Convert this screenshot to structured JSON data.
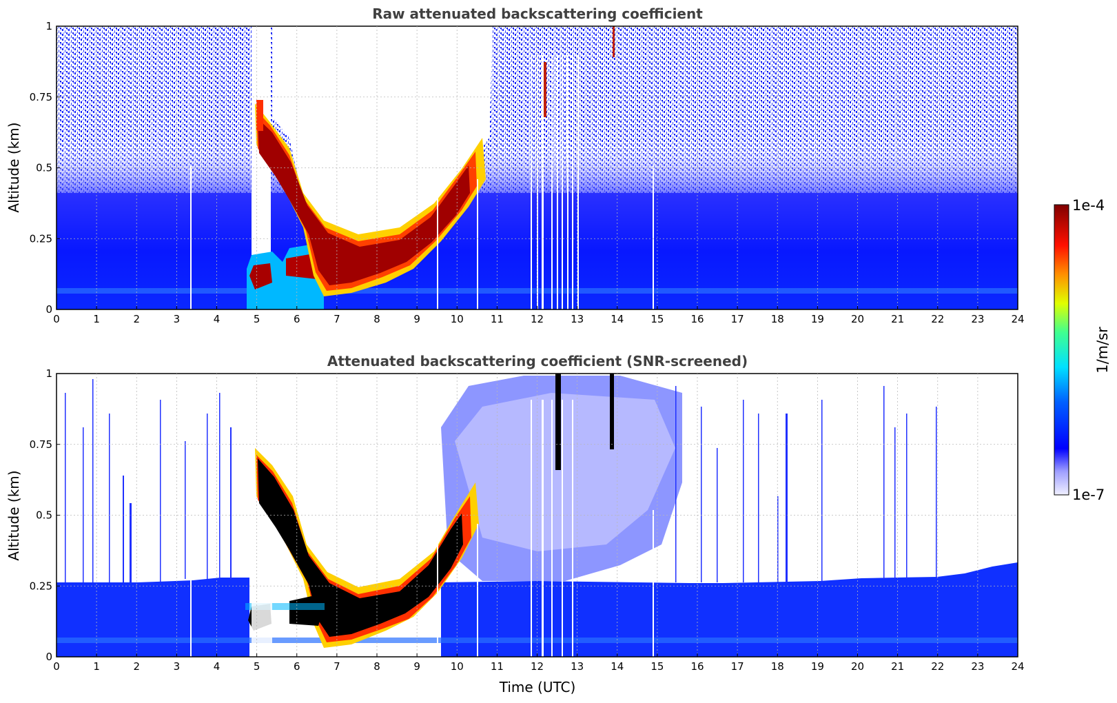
{
  "chart_data": [
    {
      "type": "heatmap",
      "title": "Raw attenuated backscattering coefficient",
      "xlabel": "",
      "ylabel": "Altitude (km)",
      "xlim": [
        0,
        24
      ],
      "ylim": [
        0,
        1
      ],
      "xticks": [
        "0",
        "1",
        "2",
        "3",
        "4",
        "5",
        "6",
        "7",
        "8",
        "9",
        "10",
        "11",
        "12",
        "13",
        "14",
        "15",
        "16",
        "17",
        "18",
        "19",
        "20",
        "21",
        "22",
        "23",
        "24"
      ],
      "yticks": [
        "0",
        "0.25",
        "0.5",
        "0.75",
        "1"
      ],
      "grid": true,
      "features": {
        "boundary_layer_top_km": 0.25,
        "noisy_region_top_km": 1.0,
        "clear_gap_hours": [
          4.95,
          5.1
        ],
        "aerosol_layer_bottom_km": [
          [
            5.1,
            0.62
          ],
          [
            5.5,
            0.55
          ],
          [
            6.0,
            0.4
          ],
          [
            6.5,
            0.28
          ],
          [
            7.0,
            0.23
          ],
          [
            7.5,
            0.21
          ],
          [
            8.0,
            0.22
          ],
          [
            8.5,
            0.26
          ],
          [
            9.0,
            0.31
          ],
          [
            9.5,
            0.38
          ],
          [
            10.0,
            0.46
          ],
          [
            10.5,
            0.57
          ]
        ],
        "low_layer_km": [
          0.05,
          0.18
        ],
        "low_layer_hours": [
          4.9,
          9.0
        ]
      }
    },
    {
      "type": "heatmap",
      "title": "Attenuated backscattering coefficient (SNR-screened)",
      "xlabel": "Time (UTC)",
      "ylabel": "Altitude (km)",
      "xlim": [
        0,
        24
      ],
      "ylim": [
        0,
        1
      ],
      "xticks": [
        "0",
        "1",
        "2",
        "3",
        "4",
        "5",
        "6",
        "7",
        "8",
        "9",
        "10",
        "11",
        "12",
        "13",
        "14",
        "15",
        "16",
        "17",
        "18",
        "19",
        "20",
        "21",
        "22",
        "23",
        "24"
      ],
      "yticks": [
        "0",
        "0.25",
        "0.5",
        "0.75",
        "1"
      ],
      "grid": true,
      "features": {
        "screened_top_km": [
          [
            0,
            0.26
          ],
          [
            2,
            0.27
          ],
          [
            4,
            0.28
          ],
          [
            15.5,
            0.26
          ],
          [
            19,
            0.27
          ],
          [
            21,
            0.28
          ],
          [
            22.5,
            0.29
          ],
          [
            23.5,
            0.32
          ],
          [
            24,
            0.33
          ]
        ],
        "saturated_color": "#000000"
      }
    }
  ],
  "colorbar": {
    "label": "1/m/sr",
    "max_label": "1e-4",
    "min_label": "1e-7",
    "colors": [
      "#eeeeff",
      "#0000ff",
      "#00c8ff",
      "#00ffaa",
      "#ffff00",
      "#ff8000",
      "#ff0000",
      "#800000"
    ]
  }
}
